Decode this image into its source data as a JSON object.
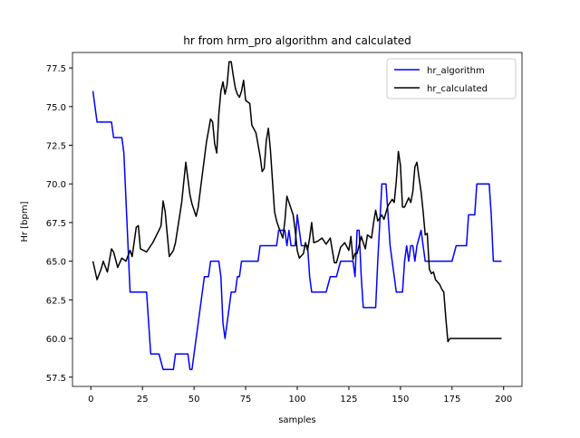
{
  "chart_data": {
    "type": "line",
    "title": "hr from hrm_pro algorithm and calculated",
    "xlabel": "samples",
    "ylabel": "Hr [bpm]",
    "xlim": [
      -8.9,
      208.9
    ],
    "ylim": [
      56.9,
      78.5
    ],
    "xticks": [
      0,
      25,
      50,
      75,
      100,
      125,
      150,
      175,
      200
    ],
    "yticks": [
      57.5,
      {
        "value": 60,
        "label": "60.0"
      },
      62.5,
      {
        "value": 65,
        "label": "65.0"
      },
      67.5,
      {
        "value": 70,
        "label": "70.0"
      },
      72.5,
      {
        "value": 75,
        "label": "75.0"
      },
      77.5
    ],
    "grid": false,
    "legend": "upper right",
    "series": [
      {
        "name": "hr_algorithm",
        "color": "#0000ff",
        "x": [
          1,
          3,
          10,
          11,
          15,
          16,
          17,
          18,
          19,
          27,
          28,
          29,
          33,
          34,
          35,
          40,
          41,
          47,
          48,
          49,
          55,
          57,
          58,
          62,
          63,
          64,
          65,
          67,
          68,
          70,
          71,
          72,
          73,
          80,
          81,
          82,
          90,
          91,
          94,
          95,
          96,
          97,
          99,
          100,
          102,
          105,
          106,
          107,
          114,
          115,
          116,
          119,
          120,
          121,
          127,
          128,
          129,
          130,
          131,
          132,
          138,
          139,
          141,
          143,
          144,
          145,
          146,
          147,
          148,
          149,
          151,
          152,
          153,
          154,
          155,
          156,
          157,
          158,
          160,
          161,
          162,
          163,
          175,
          176,
          177,
          178,
          182,
          183,
          186,
          187,
          193,
          194,
          195,
          199
        ],
        "values": [
          76,
          74,
          74,
          73,
          73,
          72,
          69,
          66,
          63,
          63,
          61,
          59,
          59,
          58.5,
          58,
          58,
          59,
          59,
          58,
          58,
          64,
          64,
          65,
          65,
          64,
          61,
          60,
          62,
          63,
          63,
          64,
          64,
          65,
          65,
          65,
          66,
          66,
          67,
          67,
          66,
          67,
          66,
          66,
          68,
          66,
          66,
          64,
          63,
          63,
          63.5,
          64,
          64,
          64.5,
          65,
          65,
          64,
          67,
          67,
          64,
          62,
          62,
          65,
          70,
          70,
          68,
          66,
          65,
          64,
          63,
          63,
          63,
          65,
          66,
          65,
          66,
          66,
          65,
          66,
          67,
          66,
          65,
          65,
          65,
          65.5,
          66,
          66,
          66,
          68,
          68,
          70,
          70,
          68,
          65,
          65
        ]
      },
      {
        "name": "hr_calculated",
        "color": "#000000",
        "x": [
          1,
          3,
          5,
          6,
          8,
          10,
          11,
          13,
          15,
          17,
          19,
          20,
          22,
          23,
          24,
          27,
          30,
          33,
          34,
          35,
          36,
          38,
          40,
          41,
          44,
          46,
          48,
          49,
          51,
          52,
          54,
          56,
          58,
          59,
          60,
          61,
          62,
          63,
          64,
          65,
          66,
          67,
          68,
          69,
          70,
          71,
          72,
          73,
          74,
          75,
          77,
          78,
          80,
          82,
          83,
          84,
          85,
          86,
          87,
          88,
          89,
          90,
          91,
          93,
          94,
          95,
          96,
          98,
          99,
          100,
          101,
          103,
          104,
          105,
          106,
          107,
          108,
          110,
          112,
          114,
          116,
          118,
          119,
          121,
          123,
          125,
          126,
          127,
          128,
          129,
          131,
          133,
          134,
          136,
          137,
          138,
          139,
          141,
          142,
          144,
          146,
          147,
          148,
          149,
          150,
          151,
          152,
          154,
          155,
          156,
          157,
          158,
          159,
          160,
          161,
          162,
          163,
          164,
          165,
          166,
          167,
          169,
          170,
          171,
          172,
          173,
          174,
          199
        ],
        "values": [
          65,
          63.8,
          64.5,
          65,
          64.3,
          65.8,
          65.6,
          64.6,
          65.2,
          65,
          65.7,
          65.3,
          67.2,
          67.3,
          65.8,
          65.6,
          66.2,
          67,
          67.3,
          68.9,
          68.2,
          65.3,
          65.7,
          66.2,
          68.8,
          71.4,
          69.3,
          68.7,
          67.9,
          68.5,
          70.6,
          72.7,
          74.2,
          74,
          72.6,
          72,
          74.5,
          76,
          76.6,
          75.8,
          76.4,
          77.9,
          77.9,
          77,
          76.2,
          75.8,
          75.6,
          76,
          76.7,
          75.4,
          75.2,
          73.8,
          73.3,
          71.8,
          70.8,
          71,
          72.8,
          73.6,
          72.2,
          70.2,
          68.2,
          67.6,
          67.2,
          66.5,
          67.6,
          69.2,
          68.8,
          68,
          67,
          65.7,
          65.2,
          65.5,
          66.2,
          65.7,
          66.5,
          67.5,
          66.2,
          66.3,
          66.5,
          66.1,
          66.5,
          64.9,
          64.9,
          65.9,
          66.2,
          65.7,
          66.6,
          65.1,
          65.5,
          65.5,
          66.6,
          65.8,
          66.7,
          66.5,
          67.5,
          68.3,
          67.6,
          68,
          67.7,
          68.6,
          69,
          68.8,
          70.2,
          72.1,
          71.2,
          68.5,
          68.5,
          69.1,
          68.8,
          69.5,
          71.1,
          71.4,
          70.4,
          69.5,
          68.2,
          66.7,
          66.8,
          64.5,
          64.2,
          64.3,
          63.8,
          63.5,
          63.2,
          63,
          61.3,
          59.8,
          60,
          60
        ]
      }
    ]
  }
}
